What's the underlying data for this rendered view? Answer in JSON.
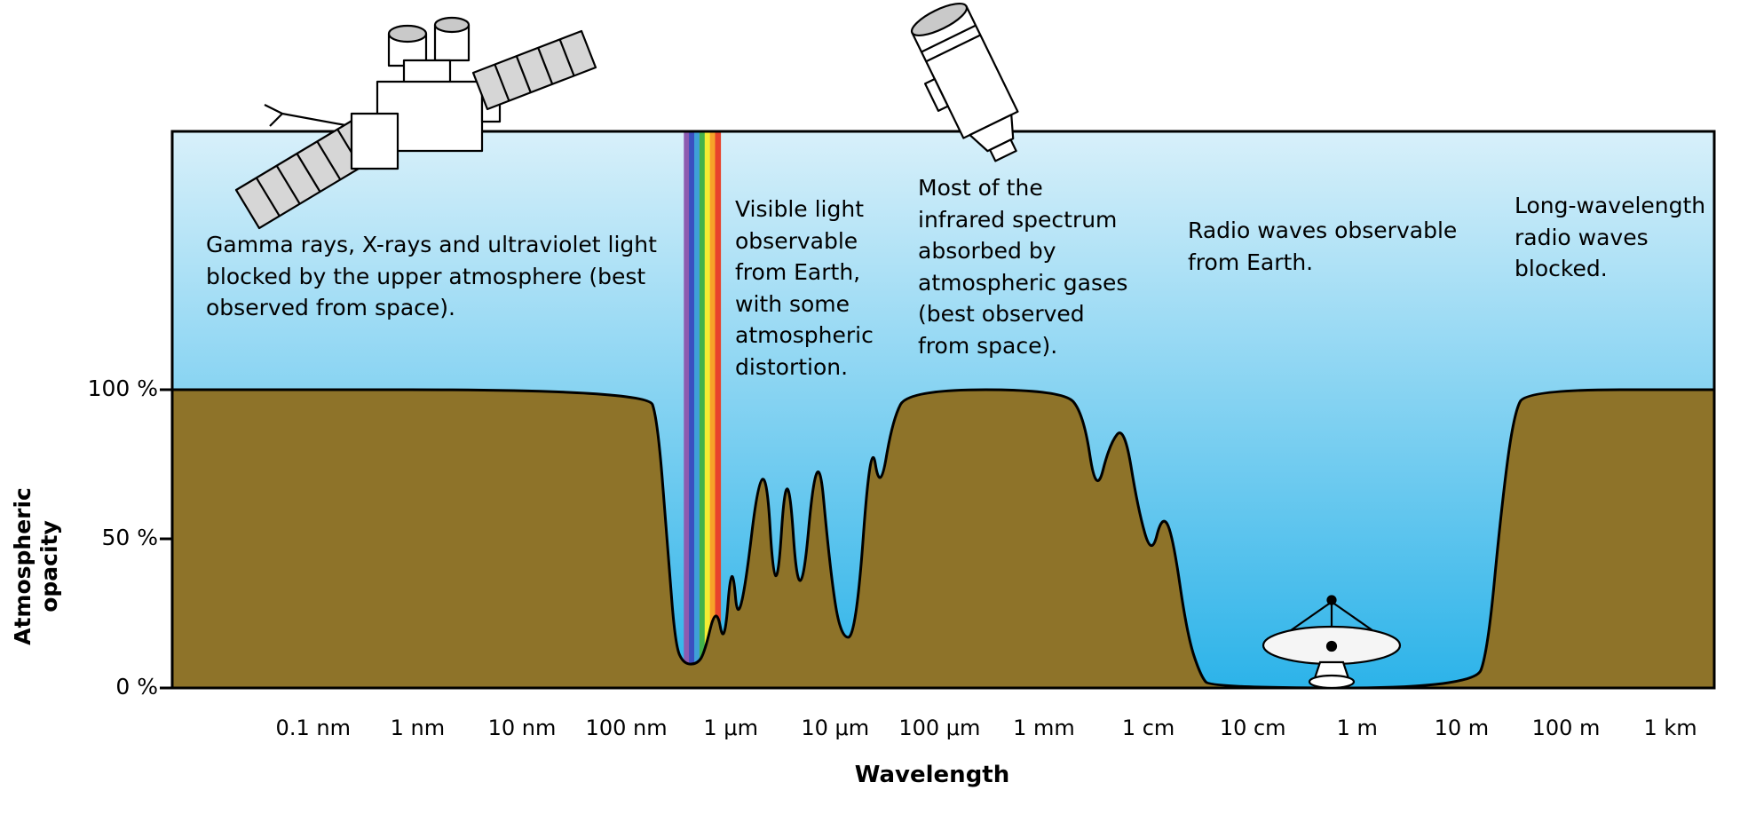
{
  "figure": {
    "x_axis_title": "Wavelength",
    "y_axis_title_line1": "Atmospheric",
    "y_axis_title_line2": "opacity"
  },
  "axes": {
    "y_ticks": [
      {
        "label": "100 %",
        "pct": 100
      },
      {
        "label": "50 %",
        "pct": 50
      },
      {
        "label": "0 %",
        "pct": 0
      }
    ],
    "x_ticks": [
      {
        "label": "0.1 nm",
        "log10_m": -10
      },
      {
        "label": "1 nm",
        "log10_m": -9
      },
      {
        "label": "10 nm",
        "log10_m": -8
      },
      {
        "label": "100 nm",
        "log10_m": -7
      },
      {
        "label": "1 μm",
        "log10_m": -6
      },
      {
        "label": "10 μm",
        "log10_m": -5
      },
      {
        "label": "100 μm",
        "log10_m": -4
      },
      {
        "label": "1 mm",
        "log10_m": -3
      },
      {
        "label": "1 cm",
        "log10_m": -2
      },
      {
        "label": "10 cm",
        "log10_m": -1
      },
      {
        "label": "1 m",
        "log10_m": 0
      },
      {
        "label": "10 m",
        "log10_m": 1
      },
      {
        "label": "100 m",
        "log10_m": 2
      },
      {
        "label": "1 km",
        "log10_m": 3
      }
    ]
  },
  "annotations": {
    "gamma": "Gamma rays, X-rays and ultraviolet light blocked by the upper atmosphere (best observed from space).",
    "visible": "Visible light observable from Earth, with some atmospheric distortion.",
    "infrared": "Most of the infrared spectrum absorbed by atmospheric gases (best observed from space).",
    "radio": "Radio waves observable from Earth.",
    "longwave": "Long-wavelength radio waves blocked."
  },
  "icons": {
    "xray_satellite": "xray-observatory-satellite",
    "infrared_telescope": "infrared-space-telescope",
    "radio_dish": "radio-telescope-dish"
  },
  "colors": {
    "sky_top": "#d8f0fa",
    "sky_bottom": "#2cb3e9",
    "ground_fill": "#8e7329",
    "curve_stroke": "#000000",
    "rainbow": [
      "#8d5bb0",
      "#3b4fc0",
      "#3f9fd8",
      "#43b24a",
      "#f3ec33",
      "#f7a329",
      "#e8432c"
    ]
  },
  "chart_data": {
    "type": "area",
    "title": "",
    "xlabel": "Wavelength",
    "ylabel": "Atmospheric opacity",
    "x_scale": "log10(wavelength in meters)",
    "x_range_log": [
      -11.35,
      3.42
    ],
    "ylim": [
      0,
      100
    ],
    "legend": "none",
    "grid": false,
    "visible_band_log": [
      -6.45,
      -6.1
    ],
    "points": [
      [
        -11.35,
        100
      ],
      [
        -6.8,
        100
      ],
      [
        -6.7,
        90
      ],
      [
        -6.6,
        45
      ],
      [
        -6.53,
        14
      ],
      [
        -6.45,
        8
      ],
      [
        -6.32,
        8
      ],
      [
        -6.25,
        12
      ],
      [
        -6.14,
        28
      ],
      [
        -6.06,
        13
      ],
      [
        -5.99,
        45
      ],
      [
        -5.92,
        16
      ],
      [
        -5.68,
        87
      ],
      [
        -5.57,
        22
      ],
      [
        -5.46,
        82
      ],
      [
        -5.34,
        20
      ],
      [
        -5.17,
        86
      ],
      [
        -5.05,
        40
      ],
      [
        -4.95,
        17
      ],
      [
        -4.8,
        17
      ],
      [
        -4.66,
        85
      ],
      [
        -4.57,
        65
      ],
      [
        -4.45,
        90
      ],
      [
        -4.3,
        100
      ],
      [
        -2.82,
        100
      ],
      [
        -2.62,
        92
      ],
      [
        -2.5,
        64
      ],
      [
        -2.37,
        82
      ],
      [
        -2.23,
        88
      ],
      [
        -2.1,
        60
      ],
      [
        -1.97,
        44
      ],
      [
        -1.87,
        58
      ],
      [
        -1.77,
        52
      ],
      [
        -1.63,
        18
      ],
      [
        -1.5,
        4
      ],
      [
        -1.4,
        0
      ],
      [
        1.12,
        0
      ],
      [
        1.25,
        12
      ],
      [
        1.38,
        60
      ],
      [
        1.5,
        92
      ],
      [
        1.62,
        100
      ],
      [
        3.42,
        100
      ]
    ]
  }
}
